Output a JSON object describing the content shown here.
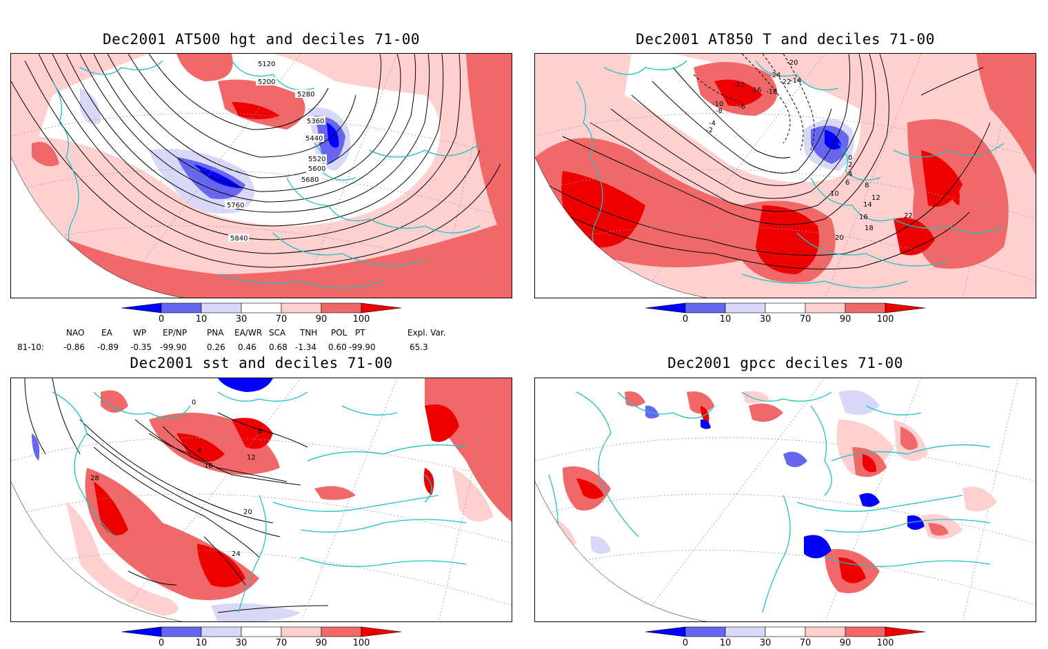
{
  "panels": [
    {
      "title": "Dec2001 AT500 hgt and deciles 71-00",
      "contour_labels": [
        "5120",
        "5200",
        "5280",
        "5360",
        "5440",
        "5520",
        "5600",
        "5680",
        "5760",
        "5840"
      ]
    },
    {
      "title": "Dec2001 AT850 T and deciles 71-00",
      "contour_labels": [
        "-20",
        "-24",
        "-22",
        "-18",
        "-16",
        "-14",
        "-12",
        "-10",
        "-8",
        "-6",
        "-4",
        "-2",
        "0",
        "2",
        "4",
        "6",
        "8",
        "10",
        "12",
        "14",
        "16",
        "18",
        "20",
        "22"
      ]
    },
    {
      "title": "Dec2001 sst and deciles 71-00",
      "contour_labels": [
        "0",
        "4",
        "8",
        "12",
        "16",
        "20",
        "24",
        "28"
      ]
    },
    {
      "title": "Dec2001 gpcc deciles 71-00",
      "contour_labels": []
    }
  ],
  "colorbar": {
    "ticks": [
      "0",
      "10",
      "30",
      "70",
      "90",
      "100"
    ],
    "colors": [
      "#0000ff",
      "#6666ee",
      "#d8d8f8",
      "#ffffff",
      "#ffd0d0",
      "#f06868",
      "#ee0000"
    ]
  },
  "indices": {
    "headers": [
      "NAO",
      "EA",
      "WP",
      "EP/NP",
      "PNA",
      "EA/WR",
      "SCA",
      "TNH",
      "POL",
      "PT",
      "Expl. Var."
    ],
    "row_label": "81-10:",
    "values": [
      "-0.86",
      "-0.89",
      "-0.35",
      "-99.90",
      "0.26",
      "0.46",
      "0.68",
      "-1.34",
      "0.60",
      "-99.90",
      "65.3"
    ]
  },
  "colors": {
    "coast": "#20c0c0",
    "strong_pos": "#ee0000",
    "mid_pos": "#f06868",
    "weak_pos": "#ffd0d0",
    "weak_neg": "#d8d8f8",
    "mid_neg": "#6666ee",
    "strong_neg": "#0000ff"
  }
}
